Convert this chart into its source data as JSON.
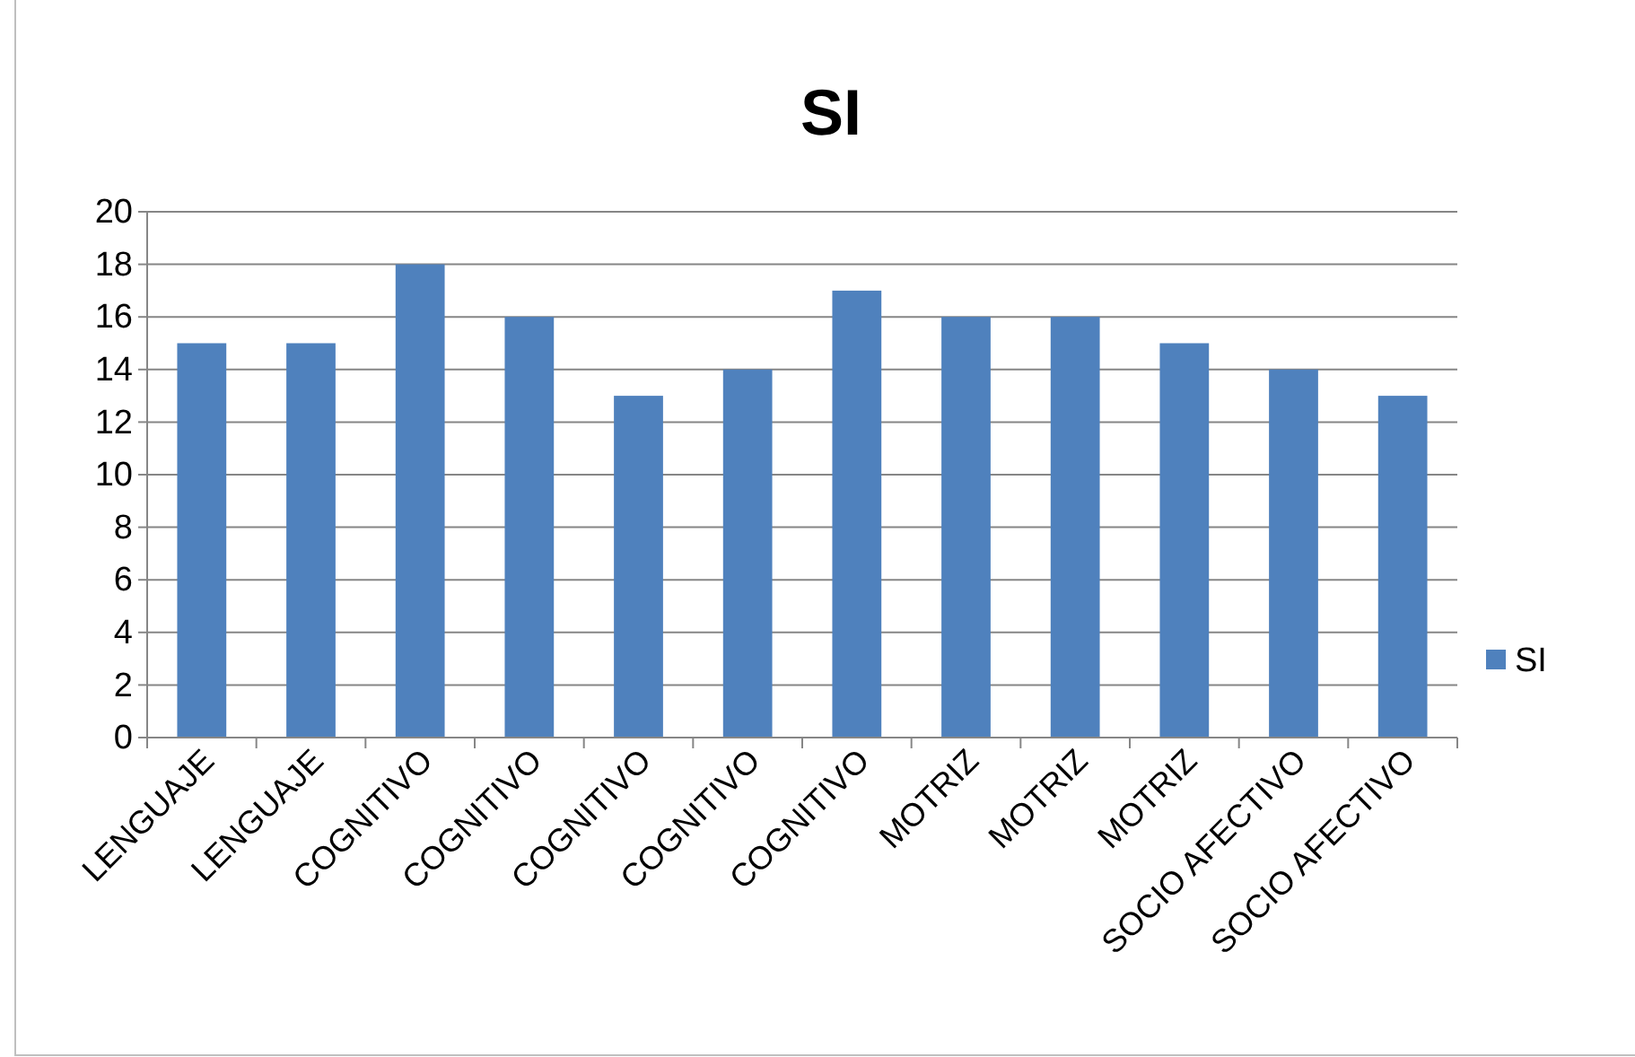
{
  "chart_data": {
    "type": "bar",
    "title": "SI",
    "categories": [
      "LENGUAJE",
      "LENGUAJE",
      "COGNITIVO",
      "COGNITIVO",
      "COGNITIVO",
      "COGNITIVO",
      "COGNITIVO",
      "MOTRIZ",
      "MOTRIZ",
      "MOTRIZ",
      "SOCIO AFECTIVO",
      "SOCIO AFECTIVO"
    ],
    "series": [
      {
        "name": "SI",
        "color": "#4f81bd",
        "values": [
          15,
          15,
          18,
          16,
          13,
          14,
          17,
          16,
          16,
          15,
          14,
          13
        ]
      }
    ],
    "ylim": [
      0,
      20
    ],
    "yticks": [
      0,
      2,
      4,
      6,
      8,
      10,
      12,
      14,
      16,
      18,
      20
    ],
    "grid": "y",
    "legend": "right"
  }
}
